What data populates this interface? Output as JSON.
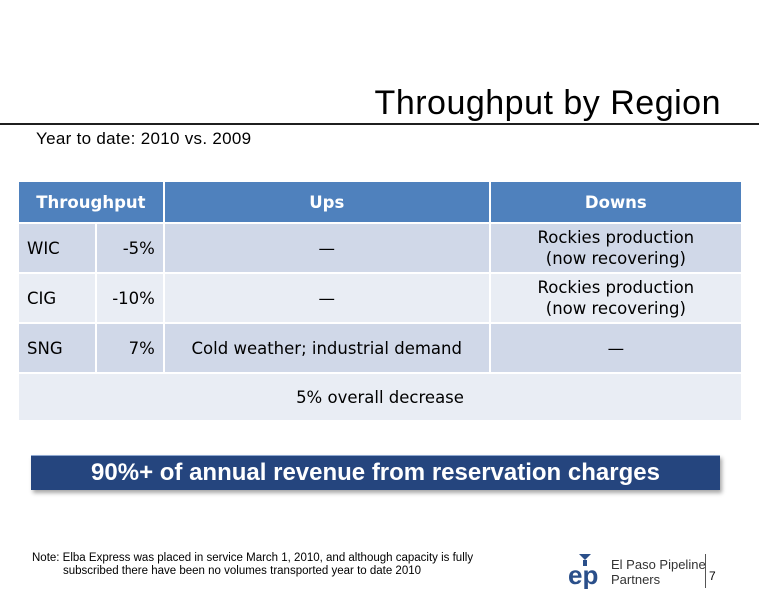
{
  "slide": {
    "title": "Throughput by Region",
    "subtitle": "Year to date: 2010 vs. 2009",
    "page_number": "7"
  },
  "table": {
    "headers": [
      "Throughput",
      "Ups",
      "Downs"
    ],
    "rows": [
      {
        "region": "WIC",
        "change": "-5%",
        "ups": "—",
        "downs_line1": "Rockies production",
        "downs_line2": "(now recovering)"
      },
      {
        "region": "CIG",
        "change": "-10%",
        "ups": "—",
        "downs_line1": "Rockies production",
        "downs_line2": "(now recovering)"
      },
      {
        "region": "SNG",
        "change": "7%",
        "ups": "Cold weather; industrial demand",
        "downs": "—"
      }
    ],
    "summary": "5% overall decrease"
  },
  "banner": "90%+ of annual revenue from reservation charges",
  "note": {
    "line1": "Note: Elba Express was placed in service March 1, 2010, and although capacity is fully",
    "line2": "subscribed there have been no volumes transported year to date 2010"
  },
  "logo": {
    "mark": "ep",
    "line1": "El Paso Pipeline",
    "line2": "Partners"
  },
  "colors": {
    "header_blue": "#4f81bd",
    "row_dark": "#d0d8e8",
    "row_light": "#e9edf4",
    "banner_navy": "#25457e"
  }
}
